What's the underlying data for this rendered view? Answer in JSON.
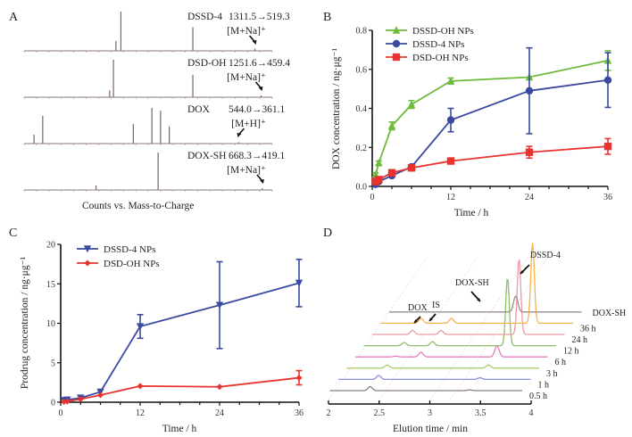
{
  "figure": {
    "panels": [
      "A",
      "B",
      "C",
      "D"
    ]
  },
  "chart_data": [
    {
      "panel": "A",
      "type": "bar",
      "title": "",
      "xlabel": "Counts vs. Mass-to-Charge",
      "spectra": [
        {
          "name": "DSSD-4",
          "transition": "1311.5→519.3",
          "adduct": "[M+Na]⁺",
          "peaks": [
            {
              "x": 0.37,
              "h": 0.25
            },
            {
              "x": 0.39,
              "h": 1.0
            },
            {
              "x": 0.68,
              "h": 0.6
            },
            {
              "x": 0.93,
              "h": 0.06
            }
          ]
        },
        {
          "name": "DSD-OH",
          "transition": "1251.6→459.4",
          "adduct": "[M+Na]⁺",
          "peaks": [
            {
              "x": 0.345,
              "h": 0.18
            },
            {
              "x": 0.36,
              "h": 1.0
            },
            {
              "x": 0.68,
              "h": 0.6
            },
            {
              "x": 0.955,
              "h": 0.05
            }
          ]
        },
        {
          "name": "DOX",
          "transition": "544.0→361.1",
          "adduct": "[M+H]⁺",
          "peaks": [
            {
              "x": 0.04,
              "h": 0.25
            },
            {
              "x": 0.075,
              "h": 0.78
            },
            {
              "x": 0.44,
              "h": 0.55
            },
            {
              "x": 0.515,
              "h": 1.0
            },
            {
              "x": 0.55,
              "h": 0.92
            },
            {
              "x": 0.585,
              "h": 0.48
            },
            {
              "x": 0.865,
              "h": 0.04
            }
          ]
        },
        {
          "name": "DOX-SH",
          "transition": "668.3→419.1",
          "adduct": "[M+Na]⁺",
          "peaks": [
            {
              "x": 0.29,
              "h": 0.12
            },
            {
              "x": 0.54,
              "h": 1.0
            },
            {
              "x": 0.96,
              "h": 0.05
            }
          ]
        }
      ]
    },
    {
      "panel": "B",
      "type": "line",
      "title": "",
      "xlabel": "Time / h",
      "ylabel": "DOX concentration / ng·μg⁻¹",
      "xlim": [
        0,
        36
      ],
      "ylim": [
        0,
        0.8
      ],
      "xticks": [
        0,
        12,
        24,
        36
      ],
      "yticks": [
        0.0,
        0.2,
        0.4,
        0.6,
        0.8
      ],
      "ytick_labels": [
        "0.0",
        "0.2",
        "0.4",
        "0.6",
        "0.8"
      ],
      "legend_position": "top-left",
      "x": [
        0.5,
        1,
        3,
        6,
        12,
        24,
        36
      ],
      "series": [
        {
          "name": "DSSD-OH NPs",
          "color": "#6dbb3c",
          "marker": "triangle-up",
          "values": [
            0.06,
            0.12,
            0.31,
            0.42,
            0.54,
            0.56,
            0.645
          ],
          "errors": [
            0.01,
            0.01,
            0.02,
            0.02,
            0.015,
            0.0,
            0.05
          ]
        },
        {
          "name": "DSSD-4 NPs",
          "color": "#3b4aa0",
          "marker": "circle",
          "values": [
            0.01,
            0.025,
            0.055,
            0.1,
            0.34,
            0.49,
            0.545
          ],
          "errors": [
            0.0,
            0.0,
            0.0,
            0.0,
            0.06,
            0.22,
            0.14
          ]
        },
        {
          "name": "DSD-OH NPs",
          "color": "#e8332e",
          "marker": "square",
          "values": [
            0.025,
            0.035,
            0.07,
            0.095,
            0.13,
            0.175,
            0.205
          ],
          "errors": [
            0.0,
            0.0,
            0.0,
            0.0,
            0.0,
            0.03,
            0.04
          ]
        }
      ]
    },
    {
      "panel": "C",
      "type": "line",
      "title": "",
      "xlabel": "Time / h",
      "ylabel": "Prodrug concentration / ng·μg⁻¹",
      "xlim": [
        0,
        36
      ],
      "ylim": [
        0,
        20
      ],
      "xticks": [
        0,
        12,
        24,
        36
      ],
      "yticks": [
        0,
        5,
        10,
        15,
        20
      ],
      "ytick_labels": [
        "0",
        "5",
        "10",
        "15",
        "20"
      ],
      "legend_position": "top-left",
      "x": [
        0.5,
        1,
        3,
        6,
        12,
        24,
        36
      ],
      "series": [
        {
          "name": "DSSD-4 NPs",
          "color": "#3b4aa0",
          "marker": "triangle-down",
          "values": [
            0.25,
            0.3,
            0.55,
            1.3,
            9.6,
            12.3,
            15.1
          ],
          "errors": [
            0.0,
            0.0,
            0.0,
            0.0,
            1.5,
            5.5,
            3.0
          ]
        },
        {
          "name": "DSD-OH NPs",
          "color": "#e8332e",
          "marker": "diamond",
          "values": [
            0.05,
            0.1,
            0.4,
            0.9,
            2.05,
            1.95,
            3.1
          ],
          "errors": [
            0.0,
            0.0,
            0.0,
            0.0,
            0.0,
            0.0,
            0.9
          ]
        }
      ]
    },
    {
      "panel": "D",
      "type": "line",
      "title": "",
      "xlabel": "Elution time / min",
      "xlim": [
        2,
        4
      ],
      "xticks": [
        2,
        2.5,
        3,
        3.5,
        4
      ],
      "xtick_labels": [
        "2",
        "2.5",
        "3",
        "3.5",
        "4"
      ],
      "annotations": [
        "DOX",
        "IS",
        "DOX-SH",
        "DSSD-4"
      ],
      "traces": [
        {
          "name": "0.5 h",
          "color": "#8c7f7f",
          "peaks": [
            {
              "t": 2.5,
              "h": 0.05
            },
            {
              "t": 3.48,
              "h": 0.01
            }
          ]
        },
        {
          "name": "1 h",
          "color": "#8a8fd6",
          "peaks": [
            {
              "t": 2.5,
              "h": 0.05
            },
            {
              "t": 3.5,
              "h": 0.02
            }
          ]
        },
        {
          "name": "3 h",
          "color": "#a9cf6a",
          "peaks": [
            {
              "t": 2.5,
              "h": 0.04
            },
            {
              "t": 3.5,
              "h": 0.04
            }
          ]
        },
        {
          "name": "6 h",
          "color": "#e67fc0",
          "peaks": [
            {
              "t": 2.5,
              "h": 0.01
            },
            {
              "t": 2.75,
              "h": 0.06
            },
            {
              "t": 3.5,
              "h": 0.14
            }
          ]
        },
        {
          "name": "12 h",
          "color": "#8fbf6a",
          "peaks": [
            {
              "t": 2.5,
              "h": 0.04
            },
            {
              "t": 2.78,
              "h": 0.05
            },
            {
              "t": 3.52,
              "h": 0.85
            }
          ]
        },
        {
          "name": "24 h",
          "color": "#ee9aa8",
          "peaks": [
            {
              "t": 2.5,
              "h": 0.05
            },
            {
              "t": 2.78,
              "h": 0.05
            },
            {
              "t": 3.55,
              "h": 0.95
            }
          ]
        },
        {
          "name": "36 h",
          "color": "#f5b44a",
          "peaks": [
            {
              "t": 2.5,
              "h": 0.06
            },
            {
              "t": 2.8,
              "h": 0.06
            },
            {
              "t": 3.6,
              "h": 1.0
            }
          ]
        },
        {
          "name": "DOX-SH",
          "color": "#9b8e8e",
          "peaks": [
            {
              "t": 3.35,
              "h": 0.2
            }
          ]
        }
      ]
    }
  ]
}
